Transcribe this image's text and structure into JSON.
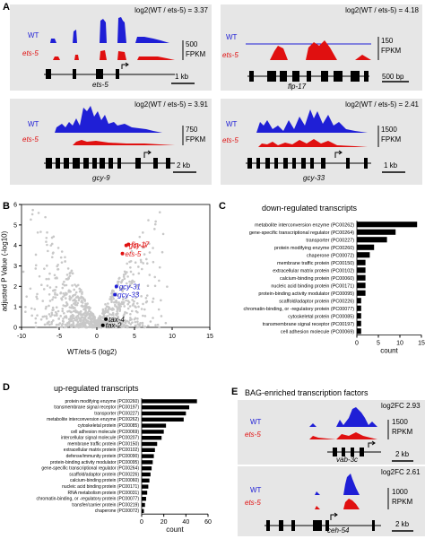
{
  "panel_a": {
    "letter": "A",
    "tracks": [
      {
        "ratio": "log2(WT / ets-5) = 3.37",
        "wt": "WT",
        "mut": "ets-5",
        "scale_value": "500",
        "scale_unit": "FPKM",
        "gene": "ets-5",
        "bar": "1 kb"
      },
      {
        "ratio": "log2(WT / ets-5) = 4.18",
        "wt": "WT",
        "mut": "ets-5",
        "scale_value": "150",
        "scale_unit": "FPKM",
        "gene": "flp-17",
        "bar": "500 bp"
      },
      {
        "ratio": "log2(WT / ets-5) = 3.91",
        "wt": "WT",
        "mut": "ets-5",
        "scale_value": "750",
        "scale_unit": "FPKM",
        "gene": "gcy-9",
        "bar": "2 kb"
      },
      {
        "ratio": "log2(WT / ets-5) = 2.41",
        "wt": "WT",
        "mut": "ets-5",
        "scale_value": "1500",
        "scale_unit": "FPKM",
        "gene": "gcy-33",
        "bar": "1 kb"
      }
    ]
  },
  "panel_b": {
    "letter": "B",
    "ylabel": "adjusted P Value (-log10)",
    "xlabel": "WT/ets-5 (log2)",
    "xticks": [
      "-10",
      "-5",
      "0",
      "5",
      "10",
      "15"
    ],
    "yticks": [
      "0",
      "1",
      "2",
      "3",
      "4",
      "5",
      "6"
    ],
    "labels_red": [
      "gcy-9",
      "flp-17",
      "ets-5"
    ],
    "labels_blue": [
      "gcy-31",
      "gcy-33"
    ],
    "labels_black": [
      "tax-4",
      "tax-2"
    ]
  },
  "panel_c": {
    "letter": "C",
    "title": "down-regulated transcripts",
    "xlabel": "count",
    "xticks": [
      "0",
      "5",
      "10",
      "15"
    ]
  },
  "panel_d": {
    "letter": "D",
    "title": "up-regulated transcripts",
    "xlabel": "count",
    "xticks": [
      "0",
      "20",
      "40",
      "60"
    ]
  },
  "panel_e": {
    "letter": "E",
    "title": "BAG-enriched transcription factors",
    "tracks": [
      {
        "ratio": "log2FC 2.93",
        "wt": "WT",
        "mut": "ets-5",
        "scale_value": "1500",
        "scale_unit": "RPKM",
        "gene": "vab-3c",
        "bar": "2 kb"
      },
      {
        "ratio": "log2FC 2.61",
        "wt": "WT",
        "mut": "ets-5",
        "scale_value": "1000",
        "scale_unit": "RPKM",
        "gene": "ceh-54",
        "bar": "2 kb"
      }
    ]
  },
  "colors": {
    "wt": "#1f1fd6",
    "mut": "#e01010",
    "panel_bg": "#e6e6e6",
    "points": "#c8c8c8"
  },
  "chart_data": [
    {
      "type": "scatter",
      "xlabel": "WT/ets-5 (log2)",
      "ylabel": "adjusted P Value (-log10)",
      "xlim": [
        -10,
        15
      ],
      "ylim": [
        0,
        6
      ],
      "highlight": [
        {
          "name": "gcy-9",
          "x": 3.9,
          "y": 4.0,
          "color": "red"
        },
        {
          "name": "flp-17",
          "x": 4.2,
          "y": 4.05,
          "color": "red"
        },
        {
          "name": "ets-5",
          "x": 3.4,
          "y": 3.6,
          "color": "red"
        },
        {
          "name": "gcy-31",
          "x": 2.6,
          "y": 2.0,
          "color": "blue"
        },
        {
          "name": "gcy-33",
          "x": 2.4,
          "y": 1.6,
          "color": "blue"
        },
        {
          "name": "tax-4",
          "x": 1.2,
          "y": 0.4,
          "color": "black"
        },
        {
          "name": "tax-2",
          "x": 0.8,
          "y": 0.1,
          "color": "black"
        }
      ]
    },
    {
      "type": "bar",
      "title": "down-regulated transcripts",
      "xlabel": "count",
      "xlim": [
        0,
        15
      ],
      "categories": [
        "metabolite interconversion enzyme (PC00262)",
        "gene-specific transcriptional regulator (PC00264)",
        "transporter (PC00227)",
        "protein modifying enzyme (PC00260)",
        "chaperone (PC00072)",
        "membrane traffic protein (PC00150)",
        "extracellular matrix protein (PC00102)",
        "calcium-binding protein (PC00060)",
        "nucleic acid binding protein (PC00171)",
        "protein-binding activity modulator (PC00095)",
        "scaffold/adaptor protein (PC00226)",
        "chromatin-binding, or -regulatory protein (PC00077)",
        "cytoskeletal protein (PC00085)",
        "transmembrane signal receptor (PC00197)",
        "cell adhesion molecule (PC00069)"
      ],
      "values": [
        14,
        9,
        7,
        4,
        3,
        2,
        2,
        2,
        2,
        2,
        1,
        1,
        1,
        1,
        1
      ]
    },
    {
      "type": "bar",
      "title": "up-regulated transcripts",
      "xlabel": "count",
      "xlim": [
        0,
        60
      ],
      "categories": [
        "protein modifying enzyme (PC00260)",
        "transmembrane signal receptor (PC00197)",
        "transporter (PC00227)",
        "metabolite interconversion enzyme (PC00262)",
        "cytoskeletal protein (PC00085)",
        "cell adhesion molecule (PC00069)",
        "intercellular signal molecule (PC00207)",
        "membrane traffic protein (PC00150)",
        "extracellular matrix protein (PC00102)",
        "defense/immunity protein (PC00090)",
        "protein-binding activity modulator (PC00095)",
        "gene-specific transcriptional regulator (PC00264)",
        "scaffold/adaptor protein (PC00226)",
        "calcium-binding protein (PC00060)",
        "nucleic acid binding protein (PC00171)",
        "RNA metabolism protein (PC00031)",
        "chromatin-binding, or -regulatory protein (PC00077)",
        "transfer/carrier protein (PC00219)",
        "chaperone (PC00072)"
      ],
      "values": [
        50,
        43,
        40,
        38,
        22,
        20,
        18,
        14,
        12,
        11,
        10,
        9,
        8,
        7,
        6,
        5,
        4,
        3,
        2
      ]
    }
  ]
}
